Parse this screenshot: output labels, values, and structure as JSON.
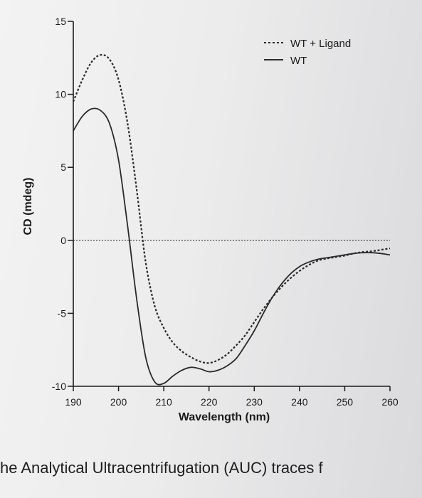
{
  "chart_data": {
    "type": "line",
    "xlabel": "Wavelength (nm)",
    "ylabel": "CD (mdeg)",
    "xlim": [
      190,
      260
    ],
    "ylim": [
      -10,
      15
    ],
    "x_ticks": [
      190,
      200,
      210,
      220,
      230,
      240,
      250,
      260
    ],
    "y_ticks": [
      -10,
      -5,
      0,
      5,
      10,
      15
    ],
    "y_tick_labels": [
      "-10",
      "-5",
      "0",
      "5",
      "10",
      "15"
    ],
    "zero_line": true,
    "grid": false,
    "legend_position": "top-right",
    "series": [
      {
        "name": "WT + Ligand",
        "style": "dashed",
        "color": "#2a2a2a",
        "x": [
          190,
          192,
          194,
          196,
          198,
          200,
          202,
          204,
          206,
          208,
          210,
          212,
          214,
          216,
          218,
          220,
          222,
          224,
          226,
          228,
          230,
          232,
          234,
          236,
          238,
          240,
          242,
          244,
          246,
          248,
          250,
          252,
          254,
          256,
          258,
          260
        ],
        "y": [
          9.5,
          11,
          12.2,
          12.7,
          12.4,
          11,
          8,
          3.5,
          -1.5,
          -4.5,
          -6,
          -7,
          -7.6,
          -8,
          -8.3,
          -8.4,
          -8.2,
          -7.8,
          -7.2,
          -6.5,
          -5.6,
          -4.7,
          -3.9,
          -3.2,
          -2.6,
          -2.1,
          -1.7,
          -1.4,
          -1.25,
          -1.15,
          -1.05,
          -0.9,
          -0.8,
          -0.75,
          -0.65,
          -0.55
        ]
      },
      {
        "name": "WT",
        "style": "solid",
        "color": "#2a2a2a",
        "x": [
          190,
          192,
          194,
          196,
          198,
          200,
          202,
          204,
          206,
          208,
          210,
          212,
          214,
          216,
          218,
          220,
          222,
          224,
          226,
          228,
          230,
          232,
          234,
          236,
          238,
          240,
          242,
          244,
          246,
          248,
          250,
          252,
          254,
          256,
          258,
          260
        ],
        "y": [
          7.5,
          8.5,
          9,
          8.9,
          8,
          5.5,
          1,
          -4,
          -8,
          -9.7,
          -9.8,
          -9.3,
          -8.9,
          -8.7,
          -8.8,
          -9,
          -8.9,
          -8.6,
          -8.1,
          -7.2,
          -6.2,
          -5,
          -3.9,
          -3,
          -2.3,
          -1.8,
          -1.5,
          -1.3,
          -1.2,
          -1.1,
          -1,
          -0.9,
          -0.85,
          -0.85,
          -0.9,
          -1
        ]
      }
    ]
  },
  "caption": "he Analytical Ultracentrifugation (AUC) traces f"
}
